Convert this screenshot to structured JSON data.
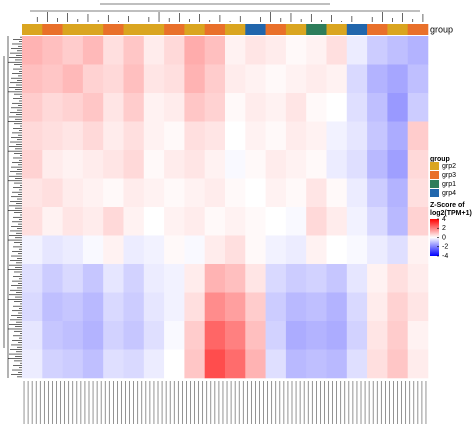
{
  "chart_data": {
    "type": "heatmap",
    "annotation_label": "group",
    "column_groups": [
      "grp2",
      "grp3",
      "grp2",
      "grp2",
      "grp3",
      "grp2",
      "grp2",
      "grp3",
      "grp2",
      "grp3",
      "grp2",
      "grp4",
      "grp3",
      "grp2",
      "grp1",
      "grp2",
      "grp4",
      "grp3",
      "grp2",
      "grp3"
    ],
    "legend": {
      "title": "group",
      "groups": [
        {
          "name": "grp2",
          "color": "#DAA520"
        },
        {
          "name": "grp3",
          "color": "#E9702A"
        },
        {
          "name": "grp1",
          "color": "#2E7D5B"
        },
        {
          "name": "grp4",
          "color": "#2166AC"
        }
      ]
    },
    "colorbar": {
      "title": [
        "Z-Score of",
        "log2(TPM+1)"
      ],
      "lim": [
        -4,
        4
      ],
      "ticks": [
        4,
        2,
        0,
        -2,
        -4
      ],
      "colors": [
        "#0000FF",
        "#FFFFFF",
        "#FF0000"
      ]
    },
    "values": [
      [
        1.2,
        1.0,
        0.8,
        1.1,
        0.5,
        0.9,
        0.3,
        0.6,
        1.3,
        1.0,
        0.2,
        0.4,
        0.3,
        0.1,
        0.2,
        0.5,
        -0.3,
        -0.8,
        -1.0,
        -1.2
      ],
      [
        1.0,
        0.9,
        1.1,
        0.7,
        0.6,
        1.0,
        0.4,
        0.5,
        1.2,
        0.8,
        0.3,
        0.2,
        0.1,
        0.2,
        0.3,
        0.2,
        -0.6,
        -1.2,
        -1.4,
        -1.0
      ],
      [
        0.8,
        0.6,
        0.7,
        0.9,
        0.4,
        0.8,
        0.2,
        0.3,
        0.9,
        0.7,
        0.1,
        0.3,
        0.2,
        0.4,
        0.1,
        0.0,
        -0.5,
        -1.0,
        -1.6,
        -0.8
      ],
      [
        0.6,
        0.5,
        0.4,
        0.6,
        0.3,
        0.5,
        0.2,
        0.1,
        0.5,
        0.4,
        0.0,
        0.2,
        0.1,
        0.3,
        0.2,
        -0.2,
        -0.4,
        -0.9,
        -1.3,
        0.8
      ],
      [
        0.7,
        0.3,
        0.2,
        0.3,
        0.4,
        0.6,
        0.1,
        0.3,
        0.4,
        0.2,
        -0.1,
        0.1,
        0.3,
        0.2,
        0.1,
        -0.3,
        -0.5,
        -1.1,
        -1.5,
        0.6
      ],
      [
        0.4,
        0.5,
        0.3,
        0.2,
        0.1,
        0.3,
        0.2,
        0.1,
        0.2,
        0.3,
        0.1,
        0.0,
        0.2,
        0.1,
        0.4,
        0.1,
        -0.3,
        -0.8,
        -1.2,
        0.5
      ],
      [
        0.5,
        0.2,
        0.4,
        0.3,
        0.6,
        0.2,
        0.0,
        0.2,
        0.3,
        0.1,
        0.2,
        0.1,
        0.0,
        -0.1,
        0.6,
        0.3,
        -0.2,
        -0.6,
        -1.1,
        0.7
      ],
      [
        -0.2,
        -0.4,
        -0.3,
        -0.1,
        0.2,
        -0.3,
        -0.2,
        0.1,
        -0.1,
        0.3,
        0.5,
        0.1,
        -0.2,
        -0.3,
        0.2,
        0.0,
        -0.1,
        -0.3,
        -0.5,
        0.2
      ],
      [
        -0.5,
        -0.8,
        -0.6,
        -0.9,
        -0.4,
        -0.7,
        -0.3,
        -0.2,
        0.3,
        1.2,
        1.0,
        0.4,
        -0.6,
        -0.8,
        -0.7,
        -0.9,
        -0.4,
        0.2,
        0.5,
        0.3
      ],
      [
        -0.6,
        -1.0,
        -0.9,
        -1.1,
        -0.6,
        -0.8,
        -0.4,
        -0.2,
        0.5,
        1.8,
        1.5,
        0.8,
        -0.8,
        -1.1,
        -1.0,
        -1.2,
        -0.6,
        0.3,
        0.7,
        0.4
      ],
      [
        -0.4,
        -0.9,
        -1.0,
        -1.2,
        -0.7,
        -0.9,
        -0.5,
        -0.1,
        0.8,
        2.4,
        2.0,
        1.0,
        -0.7,
        -1.3,
        -1.2,
        -1.3,
        -0.7,
        0.4,
        0.8,
        0.2
      ],
      [
        -0.3,
        -0.7,
        -0.8,
        -1.0,
        -0.5,
        -0.6,
        -0.3,
        0.0,
        0.9,
        2.8,
        2.3,
        1.2,
        -0.5,
        -1.1,
        -1.0,
        -1.1,
        -0.5,
        0.5,
        0.9,
        0.3
      ]
    ]
  }
}
